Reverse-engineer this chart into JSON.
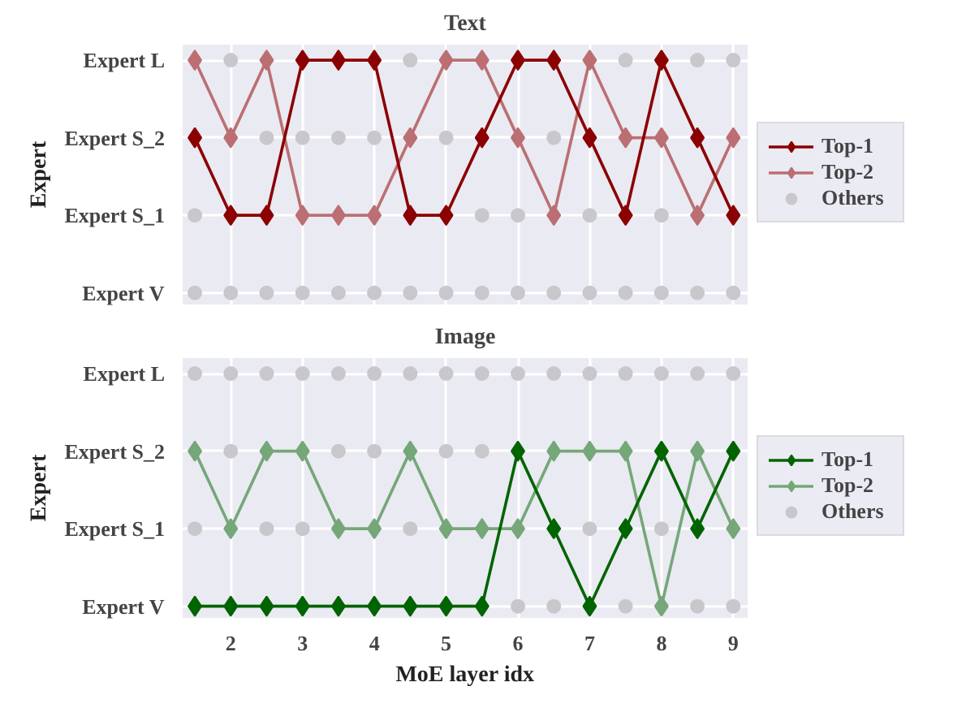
{
  "chart_data": [
    {
      "type": "line",
      "title": "Text",
      "ylabel": "Expert",
      "xlim": [
        1.33,
        9.2
      ],
      "ylim": [
        -0.15,
        3.2
      ],
      "xticks": [
        2,
        3,
        4,
        5,
        6,
        7,
        8,
        9
      ],
      "yticks": [
        {
          "value": 0,
          "label": "Expert V"
        },
        {
          "value": 1,
          "label": "Expert S_1"
        },
        {
          "value": 2,
          "label": "Expert S_2"
        },
        {
          "value": 3,
          "label": "Expert L"
        }
      ],
      "tick_labels": "y",
      "grid": true,
      "legend": "right",
      "marker": "diamond",
      "line_style": "solid",
      "series": [
        {
          "name": "Top-1",
          "color": "#8b0000",
          "x": [
            1.5,
            2,
            2.5,
            3,
            3.5,
            4,
            4.5,
            5,
            5.5,
            6,
            6.5,
            7,
            7.5,
            8,
            8.5,
            9
          ],
          "values": [
            2,
            1,
            1,
            3,
            3,
            3,
            1,
            1,
            2,
            3,
            3,
            2,
            1,
            3,
            2,
            1
          ]
        },
        {
          "name": "Top-2",
          "color": "#bb6f73",
          "x": [
            1.5,
            2,
            2.5,
            3,
            3.5,
            4,
            4.5,
            5,
            5.5,
            6,
            6.5,
            7,
            7.5,
            8,
            8.5,
            9
          ],
          "values": [
            3,
            2,
            3,
            1,
            1,
            1,
            2,
            3,
            3,
            2,
            1,
            3,
            2,
            2,
            1,
            2
          ]
        },
        {
          "name": "Others",
          "type": "scatter",
          "marker": "circle",
          "color": "#c8c8cc",
          "x": [
            1.5,
            1.5,
            2,
            2,
            2.5,
            2.5,
            3,
            3,
            3.5,
            3.5,
            4,
            4,
            4.5,
            4.5,
            5,
            5,
            5.5,
            5.5,
            6,
            6,
            6.5,
            6.5,
            7,
            7,
            7.5,
            7.5,
            8,
            8,
            8.5,
            8.5,
            9,
            9
          ],
          "values": [
            1,
            0,
            3,
            0,
            2,
            0,
            2,
            0,
            2,
            0,
            2,
            0,
            3,
            0,
            2,
            0,
            1,
            0,
            1,
            0,
            2,
            0,
            1,
            0,
            3,
            0,
            1,
            0,
            3,
            0,
            3,
            0
          ]
        }
      ]
    },
    {
      "type": "line",
      "title": "Image",
      "xlabel": "MoE layer idx",
      "ylabel": "Expert",
      "xlim": [
        1.33,
        9.2
      ],
      "ylim": [
        -0.15,
        3.2
      ],
      "xticks": [
        2,
        3,
        4,
        5,
        6,
        7,
        8,
        9
      ],
      "yticks": [
        {
          "value": 0,
          "label": "Expert V"
        },
        {
          "value": 1,
          "label": "Expert S_1"
        },
        {
          "value": 2,
          "label": "Expert S_2"
        },
        {
          "value": 3,
          "label": "Expert L"
        }
      ],
      "grid": true,
      "legend": "right",
      "marker": "diamond",
      "line_style": "solid",
      "series": [
        {
          "name": "Top-1",
          "color": "#006400",
          "x": [
            1.5,
            2,
            2.5,
            3,
            3.5,
            4,
            4.5,
            5,
            5.5,
            6,
            6.5,
            7,
            7.5,
            8,
            8.5,
            9
          ],
          "values": [
            0,
            0,
            0,
            0,
            0,
            0,
            0,
            0,
            0,
            2,
            1,
            0,
            1,
            2,
            1,
            2
          ]
        },
        {
          "name": "Top-2",
          "color": "#75a779",
          "x": [
            1.5,
            2,
            2.5,
            3,
            3.5,
            4,
            4.5,
            5,
            5.5,
            6,
            6.5,
            7,
            7.5,
            8,
            8.5,
            9
          ],
          "values": [
            2,
            1,
            2,
            2,
            1,
            1,
            2,
            1,
            1,
            1,
            2,
            2,
            2,
            0,
            2,
            1
          ]
        },
        {
          "name": "Others",
          "type": "scatter",
          "marker": "circle",
          "color": "#c8c8cc",
          "x": [
            1.5,
            1.5,
            2,
            2,
            2.5,
            2.5,
            3,
            3,
            3.5,
            3.5,
            4,
            4,
            4.5,
            4.5,
            5,
            5,
            5.5,
            5.5,
            6,
            6,
            6.5,
            6.5,
            7,
            7,
            7.5,
            7.5,
            8,
            8,
            8.5,
            8.5,
            9,
            9
          ],
          "values": [
            3,
            1,
            3,
            2,
            3,
            1,
            3,
            1,
            3,
            2,
            3,
            2,
            3,
            1,
            3,
            2,
            3,
            2,
            3,
            0,
            3,
            0,
            3,
            1,
            3,
            0,
            3,
            1,
            3,
            0,
            3,
            0
          ]
        }
      ]
    }
  ]
}
